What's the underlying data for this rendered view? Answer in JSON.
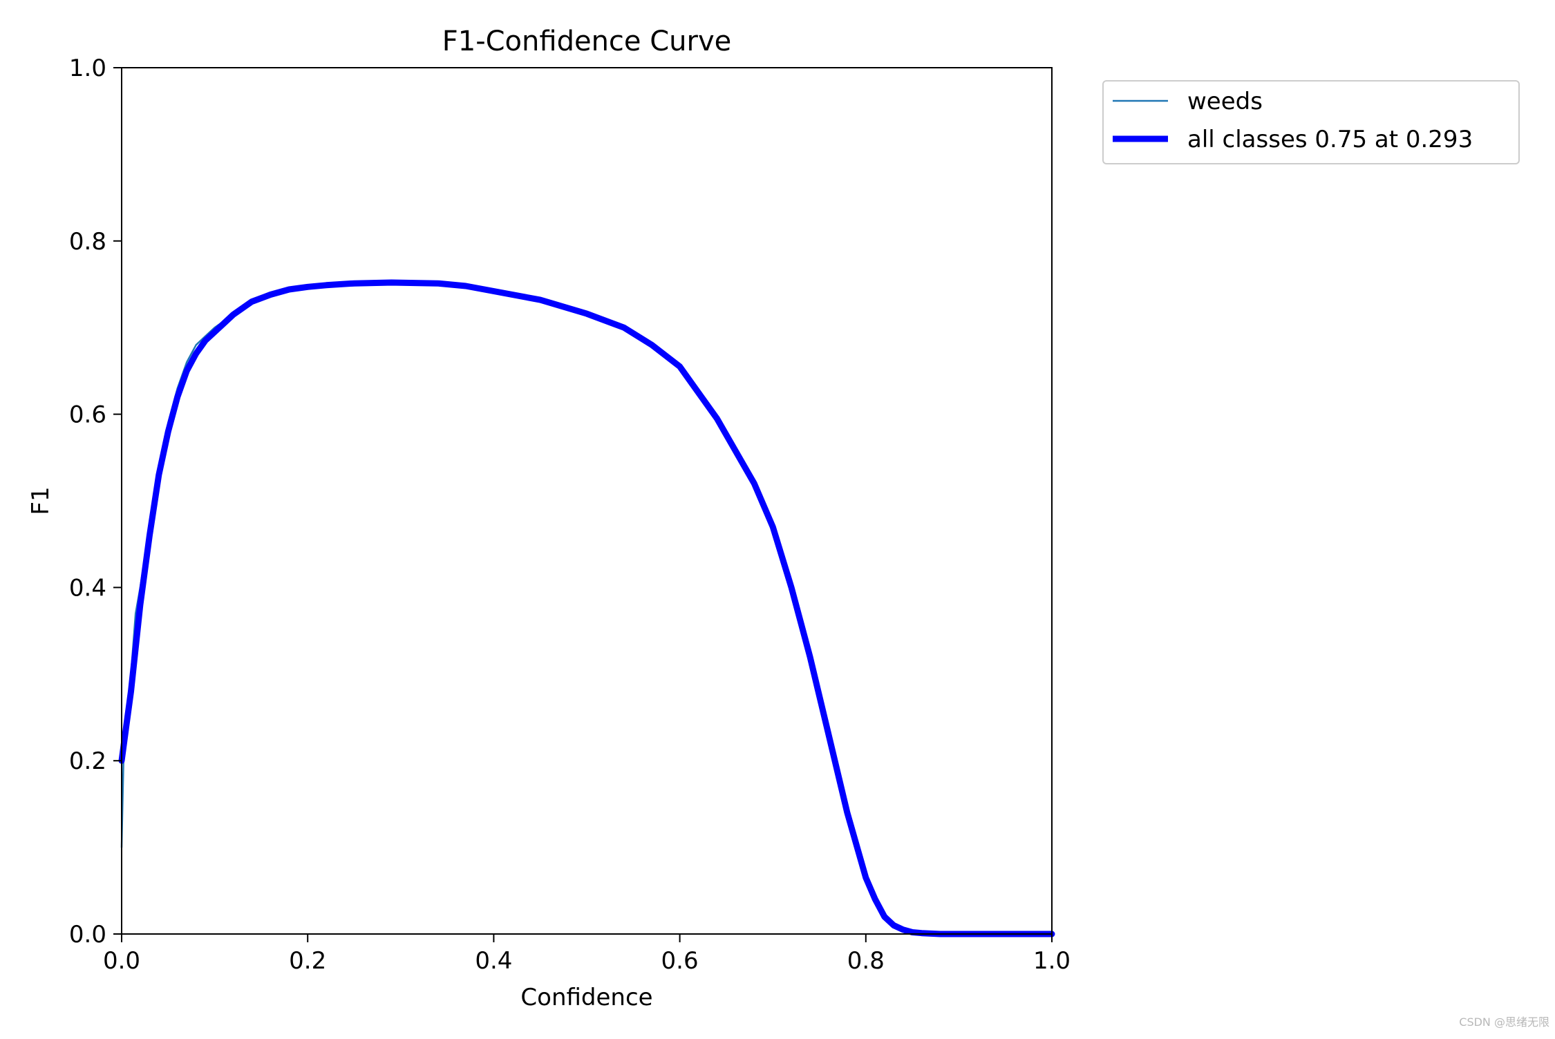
{
  "chart_data": {
    "type": "line",
    "title": "F1-Confidence Curve",
    "xlabel": "Confidence",
    "ylabel": "F1",
    "xlim": [
      0,
      1
    ],
    "ylim": [
      0,
      1
    ],
    "x_ticks": [
      "0.0",
      "0.2",
      "0.4",
      "0.6",
      "0.8",
      "1.0"
    ],
    "y_ticks": [
      "0.0",
      "0.2",
      "0.4",
      "0.6",
      "0.8",
      "1.0"
    ],
    "grid": false,
    "legend_placement": "outside top-right",
    "series": [
      {
        "name": "weeds",
        "color": "#1f77b4",
        "x": [
          0.0,
          0.002,
          0.005,
          0.01,
          0.015,
          0.02,
          0.03,
          0.04,
          0.05,
          0.06,
          0.07,
          0.08,
          0.09,
          0.1,
          0.12,
          0.14,
          0.16,
          0.18,
          0.2,
          0.22,
          0.25,
          0.29,
          0.34,
          0.37,
          0.4,
          0.45,
          0.5,
          0.54,
          0.57,
          0.6,
          0.64,
          0.68,
          0.7,
          0.72,
          0.74,
          0.76,
          0.78,
          0.8,
          0.81,
          0.82,
          0.83,
          0.84,
          0.85,
          0.86,
          0.88,
          0.9,
          0.95,
          1.0
        ],
        "y": [
          0.1,
          0.2,
          0.25,
          0.3,
          0.37,
          0.4,
          0.47,
          0.54,
          0.59,
          0.63,
          0.66,
          0.68,
          0.69,
          0.7,
          0.715,
          0.73,
          0.74,
          0.745,
          0.747,
          0.749,
          0.751,
          0.752,
          0.751,
          0.748,
          0.742,
          0.732,
          0.716,
          0.7,
          0.68,
          0.655,
          0.595,
          0.52,
          0.47,
          0.4,
          0.32,
          0.23,
          0.14,
          0.06,
          0.035,
          0.02,
          0.008,
          0.004,
          0.002,
          0.001,
          0.0,
          0.0,
          0.0,
          0.0
        ]
      },
      {
        "name": "all classes 0.75 at 0.293",
        "color": "#0000ff",
        "x": [
          0.0,
          0.005,
          0.01,
          0.015,
          0.02,
          0.03,
          0.04,
          0.05,
          0.06,
          0.07,
          0.08,
          0.09,
          0.1,
          0.11,
          0.12,
          0.14,
          0.16,
          0.18,
          0.2,
          0.22,
          0.25,
          0.29,
          0.34,
          0.37,
          0.4,
          0.45,
          0.5,
          0.54,
          0.57,
          0.6,
          0.64,
          0.68,
          0.7,
          0.72,
          0.74,
          0.76,
          0.78,
          0.8,
          0.81,
          0.82,
          0.83,
          0.84,
          0.85,
          0.86,
          0.88,
          0.9,
          0.95,
          1.0
        ],
        "y": [
          0.2,
          0.24,
          0.28,
          0.33,
          0.38,
          0.46,
          0.53,
          0.58,
          0.62,
          0.65,
          0.67,
          0.685,
          0.695,
          0.705,
          0.715,
          0.73,
          0.738,
          0.744,
          0.747,
          0.749,
          0.751,
          0.752,
          0.751,
          0.748,
          0.742,
          0.732,
          0.716,
          0.7,
          0.68,
          0.655,
          0.595,
          0.52,
          0.47,
          0.4,
          0.32,
          0.23,
          0.14,
          0.065,
          0.04,
          0.02,
          0.01,
          0.005,
          0.002,
          0.001,
          0.0,
          0.0,
          0.0,
          0.0
        ]
      }
    ]
  },
  "watermark": "CSDN @思绪无限"
}
